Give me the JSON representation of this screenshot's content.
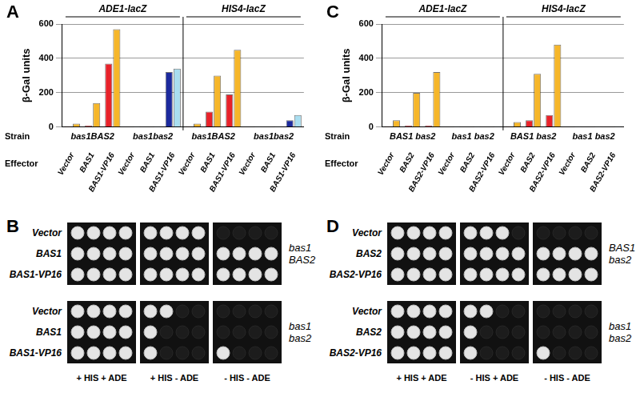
{
  "chart_data": [
    {
      "panel": "A",
      "type": "bar",
      "ylabel": "β-Gal units",
      "ylim": [
        0,
        600
      ],
      "yticks": [
        0,
        200,
        400,
        600
      ],
      "grid": true,
      "row_labels": [
        "Strain",
        "Effector"
      ],
      "reporter": [
        "ADE1-lacZ",
        "ADE1-lacZ",
        "ADE1-lacZ",
        "ADE1-lacZ",
        "ADE1-lacZ",
        "ADE1-lacZ",
        "HIS4-lacZ",
        "HIS4-lacZ",
        "HIS4-lacZ",
        "HIS4-lacZ",
        "HIS4-lacZ",
        "HIS4-lacZ"
      ],
      "strain": [
        "bas1BAS2",
        "bas1BAS2",
        "bas1BAS2",
        "bas1bas2",
        "bas1bas2",
        "bas1bas2",
        "bas1BAS2",
        "bas1BAS2",
        "bas1BAS2",
        "bas1bas2",
        "bas1bas2",
        "bas1bas2"
      ],
      "categories": [
        "Vector",
        "BAS1",
        "BAS1-VP16",
        "Vector",
        "BAS1",
        "BAS1-VP16",
        "Vector",
        "BAS1",
        "BAS1-VP16",
        "Vector",
        "BAS1",
        "BAS1-VP16"
      ],
      "series": [
        {
          "colors": [
            "#e8222a",
            "#e8222a",
            "#e8222a",
            "#1c2a9e",
            "#1c2a9e",
            "#1c2a9e",
            "#e8222a",
            "#e8222a",
            "#e8222a",
            "#1c2a9e",
            "#1c2a9e",
            "#1c2a9e"
          ],
          "values": [
            5,
            10,
            370,
            3,
            3,
            320,
            5,
            90,
            190,
            3,
            3,
            40
          ]
        },
        {
          "colors": [
            "#f6b62a",
            "#f6b62a",
            "#f6b62a",
            "#a9def0",
            "#a9def0",
            "#a9def0",
            "#f6b62a",
            "#f6b62a",
            "#f6b62a",
            "#a9def0",
            "#a9def0",
            "#a9def0"
          ],
          "values": [
            20,
            140,
            570,
            5,
            5,
            340,
            20,
            300,
            450,
            5,
            5,
            70
          ]
        }
      ]
    },
    {
      "panel": "C",
      "type": "bar",
      "ylabel": "β-Gal units",
      "ylim": [
        0,
        600
      ],
      "yticks": [
        0,
        200,
        400,
        600
      ],
      "grid": true,
      "row_labels": [
        "Strain",
        "Effector"
      ],
      "reporter": [
        "ADE1-lacZ",
        "ADE1-lacZ",
        "ADE1-lacZ",
        "ADE1-lacZ",
        "ADE1-lacZ",
        "ADE1-lacZ",
        "HIS4-lacZ",
        "HIS4-lacZ",
        "HIS4-lacZ",
        "HIS4-lacZ",
        "HIS4-lacZ",
        "HIS4-lacZ"
      ],
      "strain": [
        "BAS1 bas2",
        "BAS1 bas2",
        "BAS1 bas2",
        "bas1 bas2",
        "bas1 bas2",
        "bas1 bas2",
        "BAS1 bas2",
        "BAS1 bas2",
        "BAS1 bas2",
        "bas1 bas2",
        "bas1 bas2",
        "bas1 bas2"
      ],
      "categories": [
        "Vector",
        "BAS2",
        "BAS2-VP16",
        "Vector",
        "BAS2",
        "BAS2-VP16",
        "Vector",
        "BAS2",
        "BAS2-VP16",
        "Vector",
        "BAS2",
        "BAS2-VP16"
      ],
      "series": [
        {
          "colors": [
            "#e8222a",
            "#e8222a",
            "#e8222a",
            "#1c2a9e",
            "#1c2a9e",
            "#1c2a9e",
            "#e8222a",
            "#e8222a",
            "#e8222a",
            "#1c2a9e",
            "#1c2a9e",
            "#1c2a9e"
          ],
          "values": [
            5,
            10,
            10,
            3,
            3,
            3,
            5,
            40,
            70,
            3,
            3,
            3
          ]
        },
        {
          "colors": [
            "#f6b62a",
            "#f6b62a",
            "#f6b62a",
            "#a9def0",
            "#a9def0",
            "#a9def0",
            "#f6b62a",
            "#f6b62a",
            "#f6b62a",
            "#a9def0",
            "#a9def0",
            "#a9def0"
          ],
          "values": [
            40,
            200,
            320,
            5,
            5,
            5,
            30,
            310,
            480,
            5,
            5,
            5
          ]
        }
      ]
    }
  ],
  "spot_assays": [
    {
      "panel": "B",
      "rows": [
        "Vector",
        "BAS1",
        "BAS1-VP16"
      ],
      "conditions": [
        "+ HIS + ADE",
        "+ HIS - ADE",
        "- HIS - ADE"
      ],
      "strains": [
        {
          "name": "bas1 BAS2",
          "growth": [
            [
              4,
              4,
              0
            ],
            [
              4,
              4,
              4
            ],
            [
              4,
              4,
              4
            ]
          ]
        },
        {
          "name": "bas1 bas2",
          "growth": [
            [
              4,
              2,
              0
            ],
            [
              4,
              1,
              0
            ],
            [
              4,
              1,
              1
            ]
          ]
        }
      ]
    },
    {
      "panel": "D",
      "rows": [
        "Vector",
        "BAS2",
        "BAS2-VP16"
      ],
      "conditions": [
        "+ HIS + ADE",
        "- HIS + ADE",
        "- HIS - ADE"
      ],
      "strains": [
        {
          "name": "BAS1 bas2",
          "growth": [
            [
              4,
              3,
              0
            ],
            [
              4,
              4,
              4
            ],
            [
              4,
              4,
              4
            ]
          ]
        },
        {
          "name": "bas1 bas2",
          "growth": [
            [
              4,
              2,
              0
            ],
            [
              4,
              1,
              0
            ],
            [
              4,
              1,
              1
            ]
          ]
        }
      ]
    }
  ]
}
